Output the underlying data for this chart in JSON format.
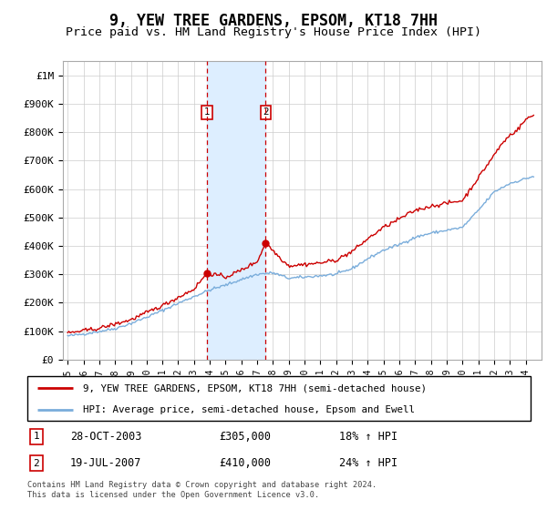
{
  "title": "9, YEW TREE GARDENS, EPSOM, KT18 7HH",
  "subtitle": "Price paid vs. HM Land Registry's House Price Index (HPI)",
  "legend_line1": "9, YEW TREE GARDENS, EPSOM, KT18 7HH (semi-detached house)",
  "legend_line2": "HPI: Average price, semi-detached house, Epsom and Ewell",
  "annotation1_date": "28-OCT-2003",
  "annotation1_price": "£305,000",
  "annotation1_hpi": "18% ↑ HPI",
  "annotation1_year": 2003.83,
  "annotation1_value": 305000,
  "annotation2_date": "19-JUL-2007",
  "annotation2_price": "£410,000",
  "annotation2_hpi": "24% ↑ HPI",
  "annotation2_year": 2007.54,
  "annotation2_value": 410000,
  "footer_line1": "Contains HM Land Registry data © Crown copyright and database right 2024.",
  "footer_line2": "This data is licensed under the Open Government Licence v3.0.",
  "ylim": [
    0,
    1050000
  ],
  "yticks": [
    0,
    100000,
    200000,
    300000,
    400000,
    500000,
    600000,
    700000,
    800000,
    900000,
    1000000
  ],
  "ytick_labels": [
    "£0",
    "£100K",
    "£200K",
    "£300K",
    "£400K",
    "£500K",
    "£600K",
    "£700K",
    "£800K",
    "£900K",
    "£1M"
  ],
  "red_line_color": "#cc0000",
  "blue_line_color": "#7aaddb",
  "shade_color": "#ddeeff",
  "grid_color": "#cccccc",
  "hpi_key_years": [
    1995,
    1996,
    1997,
    1998,
    1999,
    2000,
    2001,
    2002,
    2003,
    2004,
    2005,
    2006,
    2007,
    2008,
    2009,
    2010,
    2011,
    2012,
    2013,
    2014,
    2015,
    2016,
    2017,
    2018,
    2019,
    2020,
    2021,
    2022,
    2023,
    2024.5
  ],
  "hpi_key_vals": [
    83000,
    90000,
    99000,
    109000,
    127000,
    149000,
    173000,
    198000,
    222000,
    245000,
    262000,
    282000,
    300000,
    305000,
    286000,
    290000,
    295000,
    300000,
    320000,
    355000,
    385000,
    405000,
    430000,
    445000,
    455000,
    465000,
    525000,
    590000,
    620000,
    645000
  ],
  "red_key_years": [
    1995,
    1997,
    1999,
    2001,
    2003,
    2003.83,
    2005,
    2006,
    2007,
    2007.54,
    2008.5,
    2009,
    2010,
    2011,
    2012,
    2013,
    2014,
    2015,
    2016,
    2017,
    2018,
    2019,
    2020,
    2021,
    2022,
    2022.5,
    2023,
    2023.5,
    2024,
    2024.5
  ],
  "red_key_vals": [
    93000,
    110000,
    140000,
    190000,
    248000,
    305000,
    290000,
    315000,
    345000,
    410000,
    355000,
    330000,
    335000,
    340000,
    350000,
    380000,
    425000,
    465000,
    495000,
    525000,
    540000,
    550000,
    560000,
    640000,
    720000,
    760000,
    790000,
    810000,
    845000,
    860000
  ],
  "noise_seed": 42,
  "noise_hpi": 2500,
  "noise_red": 3500
}
